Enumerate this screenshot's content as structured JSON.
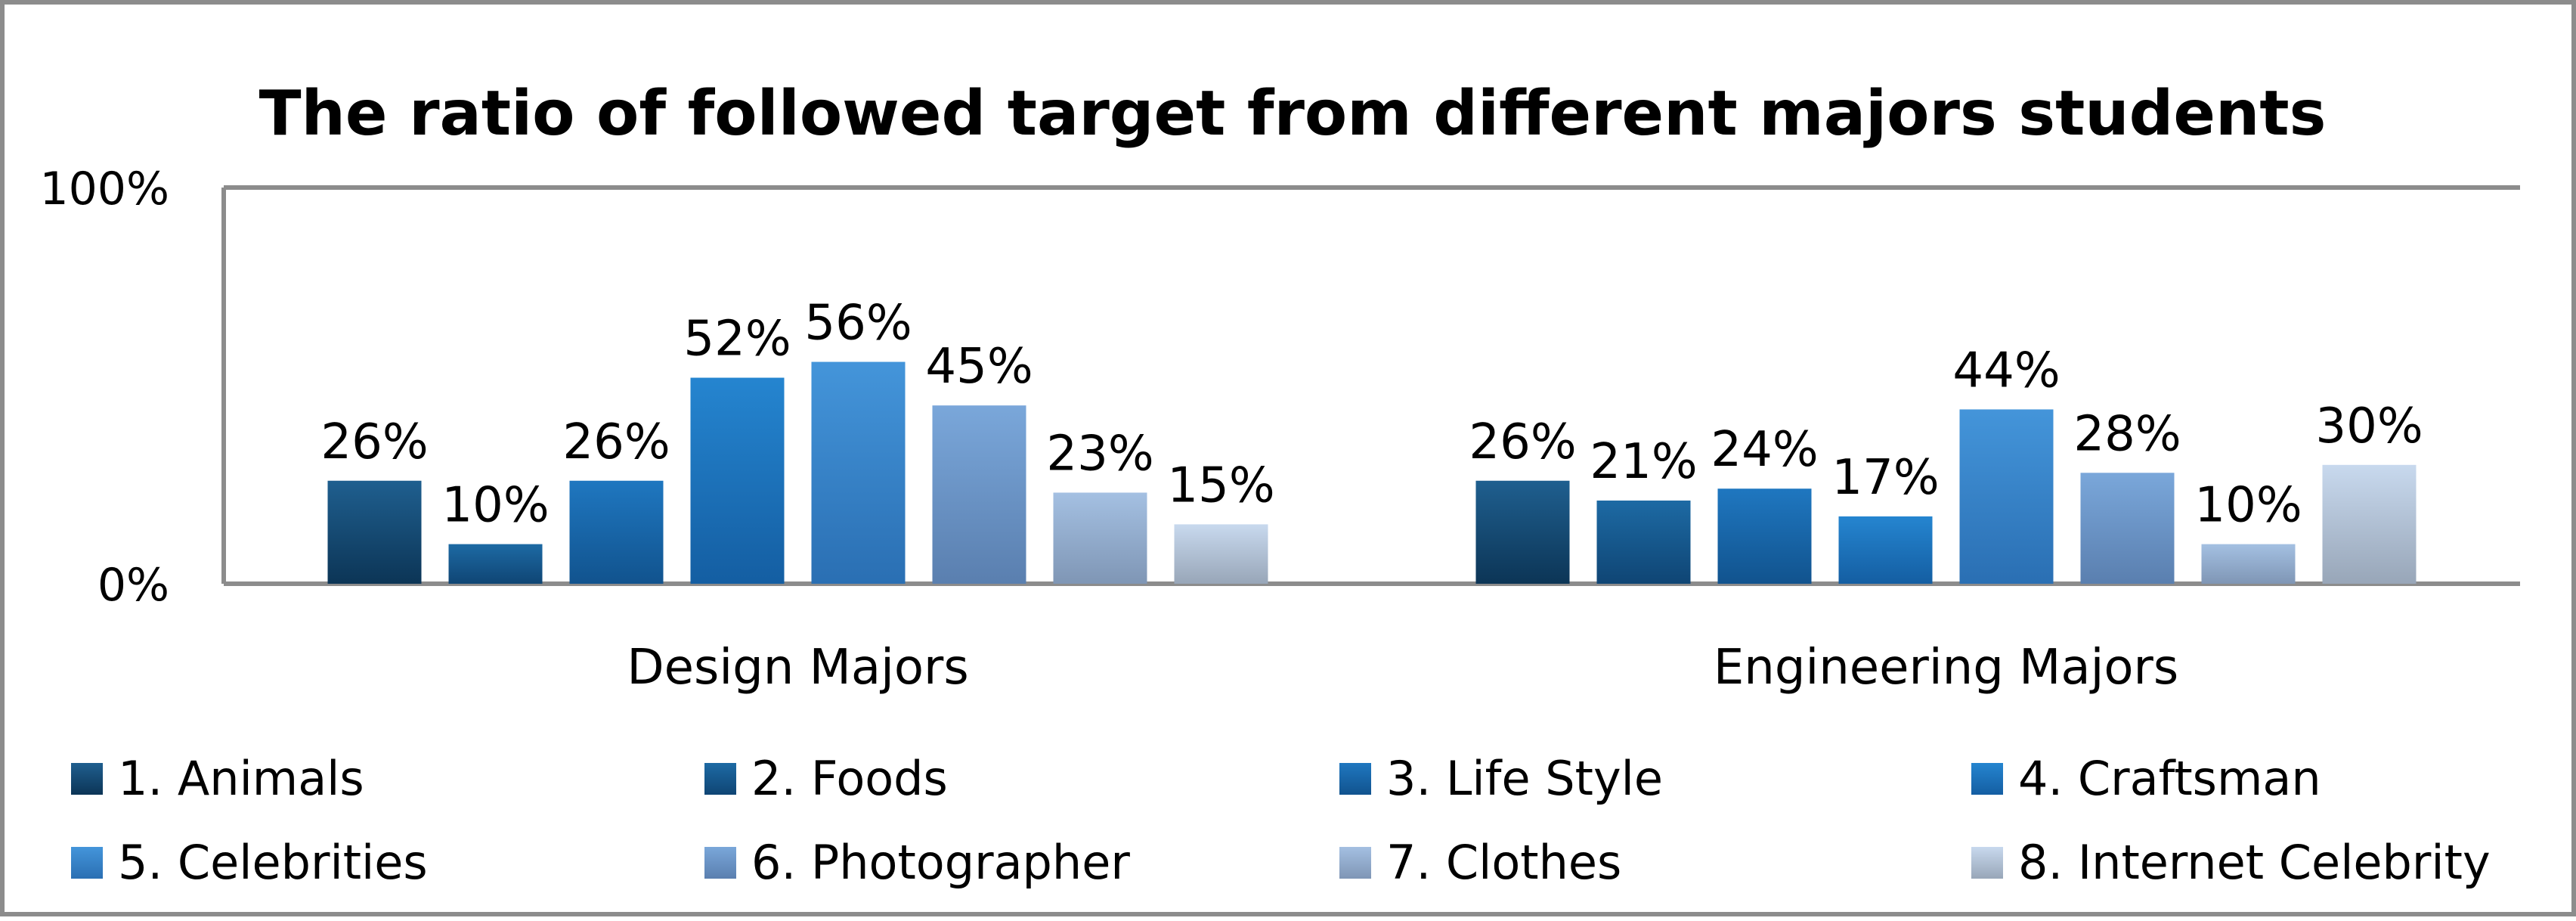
{
  "chart_data": {
    "type": "bar",
    "title": "The ratio of followed target from different majors students",
    "categories": [
      "Design Majors",
      "Engineering Majors"
    ],
    "series": [
      {
        "name": "1. Animals",
        "values": [
          26,
          26
        ],
        "labels": [
          "26%",
          "26%"
        ],
        "color_top": "#1f5f8f",
        "color_bottom": "#0c3556"
      },
      {
        "name": "2. Foods",
        "values": [
          10,
          21
        ],
        "labels": [
          "10%",
          "21%"
        ],
        "color_top": "#1d6aa4",
        "color_bottom": "#0f4574"
      },
      {
        "name": "3. Life Style",
        "values": [
          26,
          24
        ],
        "labels": [
          "26%",
          "24%"
        ],
        "color_top": "#1f77c0",
        "color_bottom": "#11538e"
      },
      {
        "name": "4. Craftsman",
        "values": [
          52,
          17
        ],
        "labels": [
          "52%",
          "17%"
        ],
        "color_top": "#2585d0",
        "color_bottom": "#145ea2"
      },
      {
        "name": "5. Celebrities",
        "values": [
          56,
          44
        ],
        "labels": [
          "56%",
          "44%"
        ],
        "color_top": "#4495da",
        "color_bottom": "#2a6fb3"
      },
      {
        "name": "6. Photographer",
        "values": [
          45,
          28
        ],
        "labels": [
          "45%",
          "28%"
        ],
        "color_top": "#7aa7da",
        "color_bottom": "#5a7faf"
      },
      {
        "name": "7. Clothes",
        "values": [
          23,
          10
        ],
        "labels": [
          "23%",
          "10%"
        ],
        "color_top": "#a4c0e2",
        "color_bottom": "#7f96b5"
      },
      {
        "name": "8. Internet Celebrity",
        "values": [
          15,
          30
        ],
        "labels": [
          "15%",
          "30%"
        ],
        "color_top": "#c8d9ee",
        "color_bottom": "#98a6b8"
      }
    ],
    "ylim": [
      0,
      100
    ],
    "yticks": [
      "0%",
      "100%"
    ],
    "grid": false,
    "legend_placement": "bottom",
    "colors": {
      "axis": "#8c8c8c",
      "frame": "#8c8c8c"
    }
  }
}
